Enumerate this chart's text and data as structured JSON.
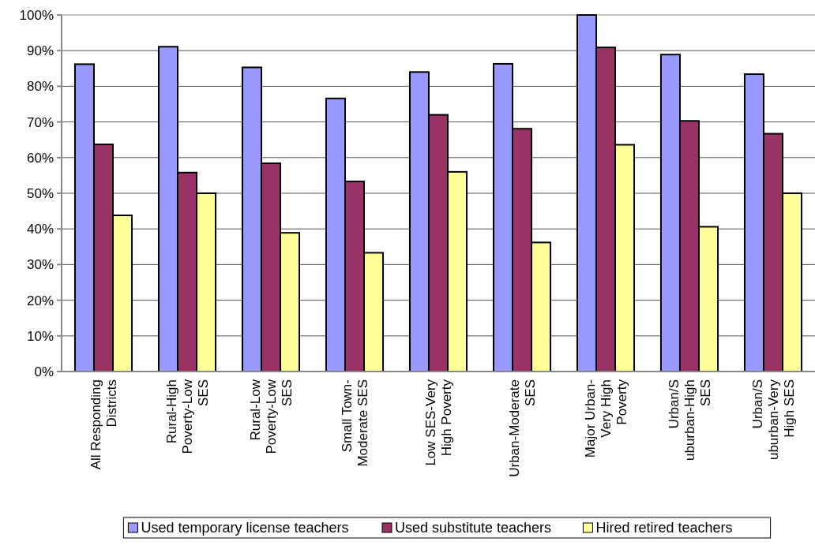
{
  "chart_data": {
    "type": "bar",
    "categories": [
      "All Responding\nDistricts",
      "Rural-High\nPoverty-Low\nSES",
      "Rural-Low\nPoverty-Low\nSES",
      "Small Town-\nModerate SES",
      "Low SES-Very\nHigh Poverty",
      "Urban-Moderate\nSES",
      "Major Urban-\nVery High\nPoverty",
      "Urban/S\nuburban-High\nSES",
      "Urban/S\nuburban-Very\nHigh SES"
    ],
    "series": [
      {
        "name": "Used temporary license teachers",
        "color": "#9999ff",
        "values": [
          86.2,
          91.1,
          85.3,
          76.6,
          84.0,
          86.3,
          100,
          88.9,
          83.4
        ]
      },
      {
        "name": "Used substitute teachers",
        "color": "#993366",
        "values": [
          63.7,
          55.8,
          58.4,
          53.3,
          72.0,
          68.1,
          90.9,
          70.3,
          66.7
        ]
      },
      {
        "name": "Hired retired teachers",
        "color": "#ffff99",
        "values": [
          43.8,
          50,
          38.9,
          33.3,
          56.0,
          36.2,
          63.6,
          40.6,
          50
        ]
      }
    ],
    "ylim": [
      0,
      100
    ],
    "yticks": [
      {
        "value": 0,
        "label": "0%"
      },
      {
        "value": 10,
        "label": "10%"
      },
      {
        "value": 20,
        "label": "20%"
      },
      {
        "value": 30,
        "label": "30%"
      },
      {
        "value": 40,
        "label": "40%"
      },
      {
        "value": 50,
        "label": "50%"
      },
      {
        "value": 60,
        "label": "60%"
      },
      {
        "value": 70,
        "label": "70%"
      },
      {
        "value": 80,
        "label": "80%"
      },
      {
        "value": 90,
        "label": "90%"
      },
      {
        "value": 100,
        "label": "100%"
      }
    ],
    "grid": "y",
    "legend": "bottom"
  }
}
